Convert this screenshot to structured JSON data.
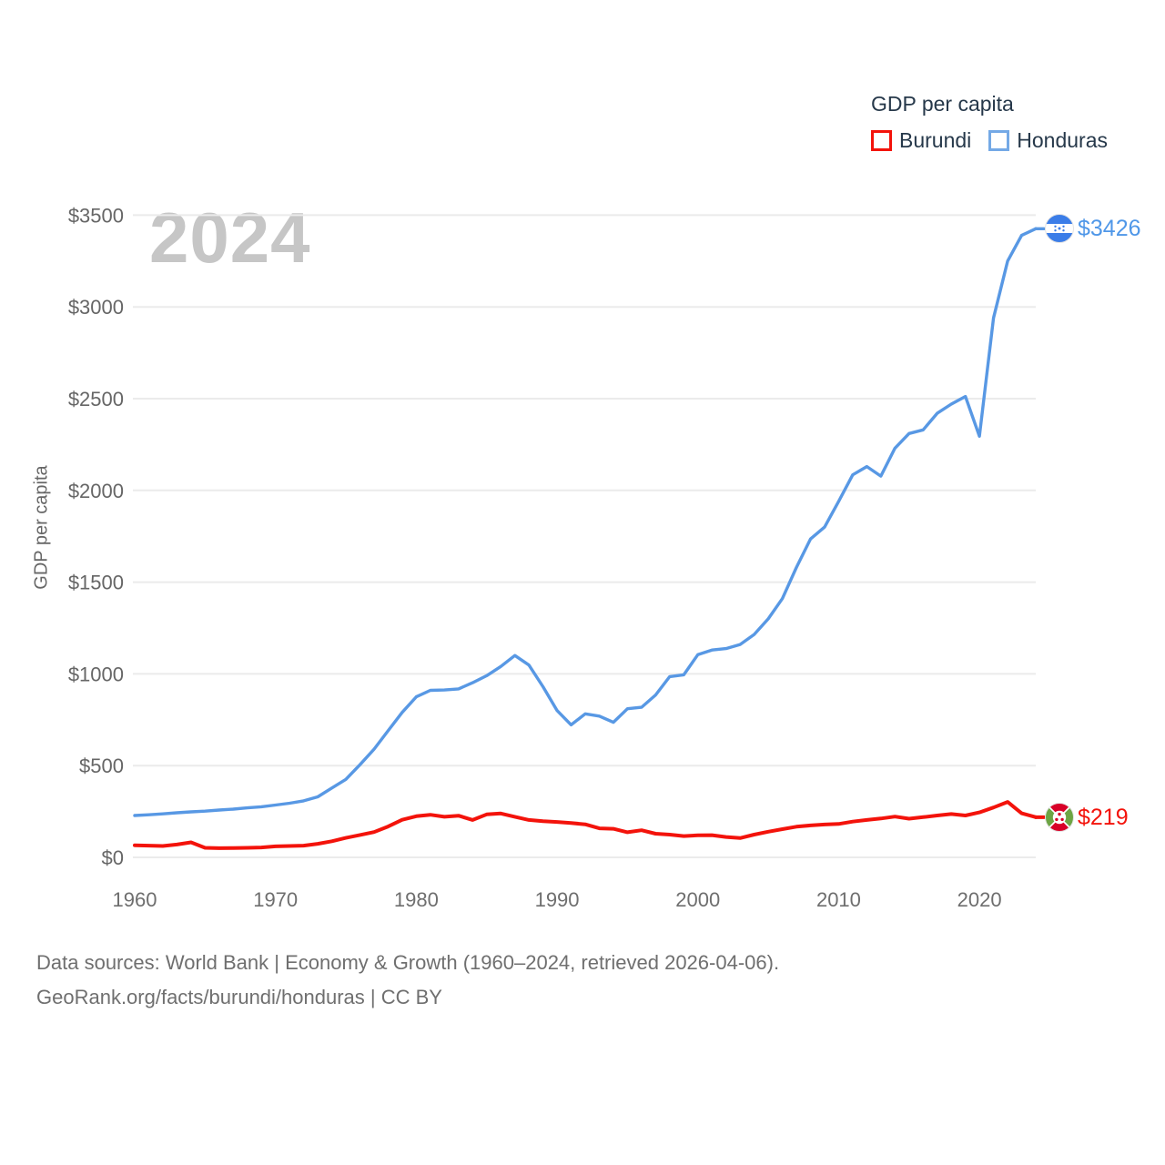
{
  "watermark_year": "2024",
  "legend": {
    "title": "GDP per capita",
    "items": [
      {
        "label": "Burundi",
        "color": "#f3130b"
      },
      {
        "label": "Honduras",
        "color": "#5898e4"
      }
    ]
  },
  "y_axis_title": "GDP per capita",
  "end_labels": {
    "honduras": "$3426",
    "burundi": "$219"
  },
  "footer": {
    "line1": "Data sources: World Bank | Economy & Growth (1960–2024, retrieved 2026-04-06).",
    "line2": "GeoRank.org/facts/burundi/honduras | CC BY"
  },
  "chart_data": {
    "type": "line",
    "title": "GDP per capita",
    "ylabel": "GDP per capita",
    "ylim": [
      0,
      3500
    ],
    "ytick_step": 500,
    "yticks": [
      "$0",
      "$500",
      "$1000",
      "$1500",
      "$2000",
      "$2500",
      "$3000",
      "$3500"
    ],
    "xticks": [
      1960,
      1970,
      1980,
      1990,
      2000,
      2010,
      2020
    ],
    "grid": "horizontal",
    "legend_position": "top-right",
    "x": [
      1960,
      1961,
      1962,
      1963,
      1964,
      1965,
      1966,
      1967,
      1968,
      1969,
      1970,
      1971,
      1972,
      1973,
      1974,
      1975,
      1976,
      1977,
      1978,
      1979,
      1980,
      1981,
      1982,
      1983,
      1984,
      1985,
      1986,
      1987,
      1988,
      1989,
      1990,
      1991,
      1992,
      1993,
      1994,
      1995,
      1996,
      1997,
      1998,
      1999,
      2000,
      2001,
      2002,
      2003,
      2004,
      2005,
      2006,
      2007,
      2008,
      2009,
      2010,
      2011,
      2012,
      2013,
      2014,
      2015,
      2016,
      2017,
      2018,
      2019,
      2020,
      2021,
      2022,
      2023,
      2024
    ],
    "series": [
      {
        "name": "Burundi",
        "color": "#f3130b",
        "values": [
          66,
          64,
          62,
          70,
          82,
          52,
          50,
          51,
          52,
          54,
          60,
          62,
          64,
          74,
          88,
          106,
          122,
          138,
          168,
          205,
          224,
          232,
          221,
          227,
          204,
          234,
          239,
          221,
          204,
          197,
          193,
          187,
          180,
          158,
          156,
          137,
          148,
          129,
          124,
          116,
          120,
          121,
          111,
          105,
          124,
          140,
          154,
          167,
          174,
          179,
          182,
          195,
          204,
          212,
          222,
          211,
          219,
          228,
          236,
          228,
          245,
          272,
          302,
          240,
          219
        ],
        "end_value": 219
      },
      {
        "name": "Honduras",
        "color": "#5898e4",
        "values": [
          228,
          232,
          237,
          243,
          248,
          252,
          258,
          263,
          270,
          276,
          285,
          295,
          308,
          330,
          378,
          425,
          505,
          590,
          690,
          790,
          875,
          910,
          912,
          918,
          952,
          990,
          1040,
          1100,
          1048,
          930,
          800,
          722,
          782,
          770,
          736,
          810,
          818,
          885,
          985,
          995,
          1105,
          1130,
          1138,
          1160,
          1215,
          1300,
          1410,
          1580,
          1735,
          1800,
          1940,
          2085,
          2130,
          2078,
          2230,
          2310,
          2330,
          2420,
          2470,
          2512,
          2295,
          2940,
          3250,
          3390,
          3426
        ],
        "end_value": 3426
      }
    ]
  }
}
